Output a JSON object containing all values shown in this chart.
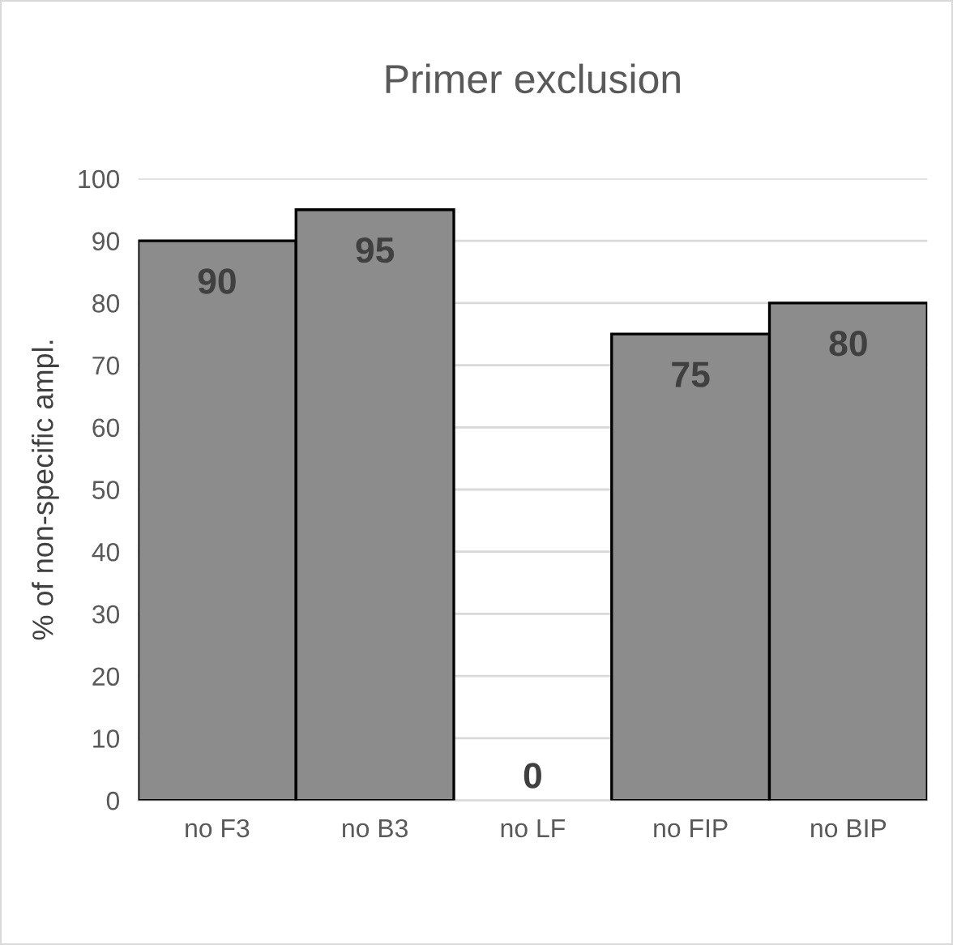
{
  "chart_data": {
    "type": "bar",
    "title": "Primer exclusion",
    "ylabel": "% of non-specific ampl.",
    "categories": [
      "no F3",
      "no B3",
      "no LF",
      "no FIP",
      "no BIP"
    ],
    "values": [
      90,
      95,
      0,
      75,
      80
    ],
    "color": "#8c8c8c",
    "ylim": [
      0,
      100
    ],
    "yticks": [
      0,
      10,
      20,
      30,
      40,
      50,
      60,
      70,
      80,
      90,
      100
    ],
    "grid": "y",
    "data_labels": true
  }
}
